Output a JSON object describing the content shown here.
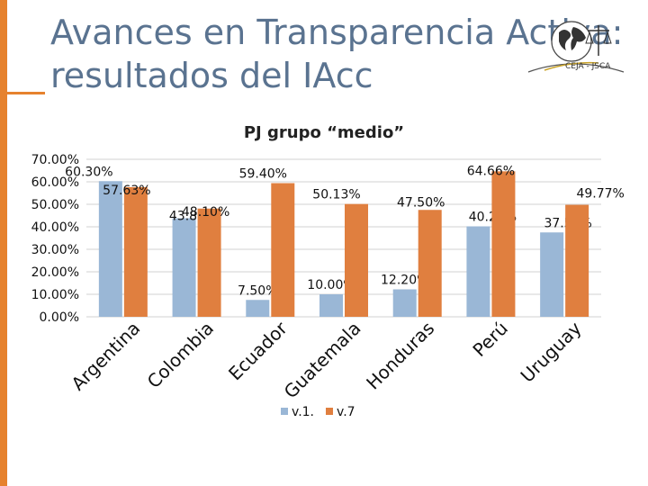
{
  "slide": {
    "title_line1": "Avances en Transparencia Activa:",
    "title_line2": "resultados del IAcc",
    "logo_text": "CEJA - JSCA"
  },
  "colors": {
    "series1": "#9ab7d6",
    "series2": "#e07f3f",
    "accent": "#e6822e",
    "title": "#5a7390"
  },
  "chart_data": {
    "type": "bar",
    "title": "PJ grupo “medio”",
    "categories": [
      "Argentina",
      "Colombia",
      "Ecuador",
      "Guatemala",
      "Honduras",
      "Perú",
      "Uruguay"
    ],
    "series": [
      {
        "name": "v.1.",
        "values": [
          60.3,
          43.8,
          7.5,
          10.0,
          12.2,
          40.2,
          37.5
        ],
        "labels": [
          "60.30%",
          "43.80%",
          "7.50%",
          "10.00%",
          "12.20%",
          "40.20%",
          "37.50%"
        ]
      },
      {
        "name": "v.7",
        "values": [
          57.63,
          48.1,
          59.4,
          50.13,
          47.5,
          64.66,
          49.77
        ],
        "labels": [
          "57.63%",
          "48.10%",
          "59.40%",
          "50.13%",
          "47.50%",
          "64.66%",
          "49.77%"
        ]
      }
    ],
    "yticks": [
      "0.00%",
      "10.00%",
      "20.00%",
      "30.00%",
      "40.00%",
      "50.00%",
      "60.00%",
      "70.00%"
    ],
    "ylim": [
      0,
      70
    ],
    "xlabel": "",
    "ylabel": "",
    "legend": "bottom"
  }
}
